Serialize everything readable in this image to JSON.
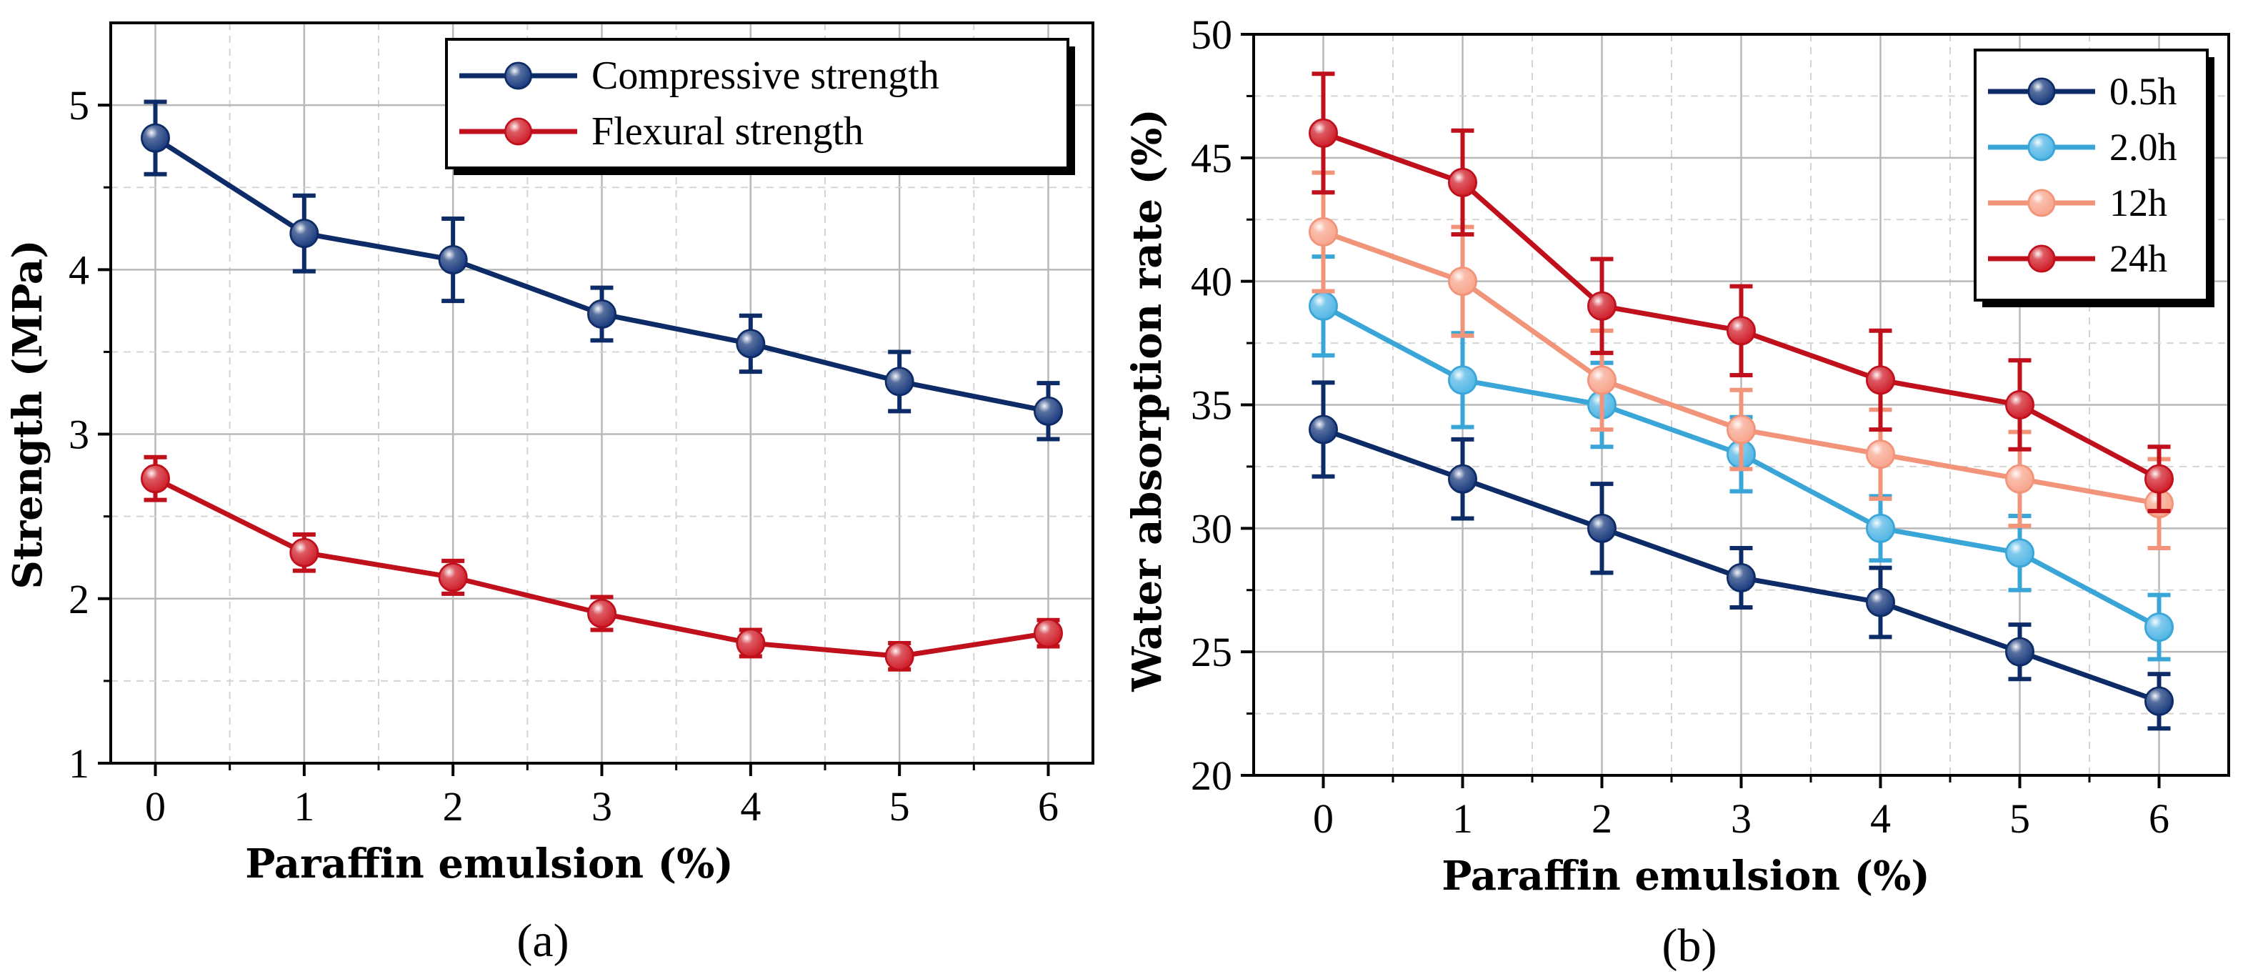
{
  "chart_data": [
    {
      "type": "line",
      "panel_label": "(a)",
      "xlabel": "Paraffin emulsion (%)",
      "ylabel": "Strength (MPa)",
      "x": [
        0,
        1,
        2,
        3,
        4,
        5,
        6
      ],
      "xlim": [
        -0.3,
        6.3
      ],
      "ylim": [
        1,
        5.5
      ],
      "xticks": [
        "0",
        "1",
        "2",
        "3",
        "4",
        "5",
        "6"
      ],
      "yticks": [
        "1",
        "2",
        "3",
        "4",
        "5"
      ],
      "ytick_values": [
        1,
        2,
        3,
        4,
        5
      ],
      "grid": true,
      "legend_position": "top-right",
      "series": [
        {
          "name": "Compressive strength",
          "color": "#0d2b66",
          "marker_color": "#1f3f80",
          "values": [
            4.8,
            4.22,
            4.06,
            3.73,
            3.55,
            3.32,
            3.14
          ],
          "errors": [
            0.22,
            0.23,
            0.25,
            0.16,
            0.17,
            0.18,
            0.17
          ]
        },
        {
          "name": "Flexural strength",
          "color": "#c0101c",
          "marker_color": "#d1232e",
          "values": [
            2.73,
            2.28,
            2.13,
            1.91,
            1.73,
            1.65,
            1.79
          ],
          "errors": [
            0.13,
            0.11,
            0.1,
            0.1,
            0.08,
            0.08,
            0.08
          ]
        }
      ]
    },
    {
      "type": "line",
      "panel_label": "(b)",
      "xlabel": "Paraffin emulsion (%)",
      "ylabel": "Water absorption rate (%)",
      "x": [
        0,
        1,
        2,
        3,
        4,
        5,
        6
      ],
      "xlim": [
        -0.5,
        6.5
      ],
      "ylim": [
        20,
        50
      ],
      "xticks": [
        "0",
        "1",
        "2",
        "3",
        "4",
        "5",
        "6"
      ],
      "yticks": [
        "20",
        "25",
        "30",
        "35",
        "40",
        "45",
        "50"
      ],
      "ytick_values": [
        20,
        25,
        30,
        35,
        40,
        45,
        50
      ],
      "grid": true,
      "legend_position": "top-right",
      "series": [
        {
          "name": "0.5h",
          "color": "#0d2b66",
          "marker_color": "#1f3f80",
          "values": [
            34,
            32,
            30,
            28,
            27,
            25,
            23
          ],
          "errors": [
            1.9,
            1.6,
            1.8,
            1.2,
            1.4,
            1.1,
            1.1
          ]
        },
        {
          "name": "2.0h",
          "color": "#3aa6d8",
          "marker_color": "#56b8e6",
          "values": [
            39,
            36,
            35,
            33,
            30,
            29,
            26
          ],
          "errors": [
            2.0,
            1.9,
            1.7,
            1.5,
            1.3,
            1.5,
            1.3
          ]
        },
        {
          "name": "12h",
          "color": "#f2947a",
          "marker_color": "#f8a78f",
          "values": [
            42,
            40,
            36,
            34,
            33,
            32,
            31
          ],
          "errors": [
            2.4,
            2.2,
            2.0,
            1.6,
            1.8,
            1.9,
            1.8
          ]
        },
        {
          "name": "24h",
          "color": "#c0101c",
          "marker_color": "#d1232e",
          "values": [
            46,
            44,
            39,
            38,
            36,
            35,
            32
          ],
          "errors": [
            2.4,
            2.1,
            1.9,
            1.8,
            2.0,
            1.8,
            1.3
          ]
        }
      ]
    }
  ]
}
